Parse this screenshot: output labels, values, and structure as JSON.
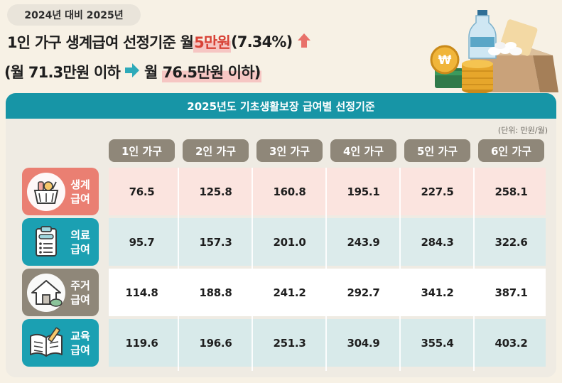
{
  "header": {
    "pill": "2024년 대비 2025년",
    "title_line1_prefix": "1인 가구 생계급여 선정기준 월 ",
    "title_line1_highlight": "5만원",
    "title_line1_suffix": "(7.34%)",
    "title_line2_prefix": "(월 71.3만원 이하",
    "title_line2_mid": "월 ",
    "title_line2_highlight": "76.5만원 이하)",
    "up_icon": "up-arrow-icon",
    "right_icon": "right-arrow-icon"
  },
  "table": {
    "title": "2025년도 기초생활보장 급여별 선정기준",
    "unit": "(단위: 만원/월)",
    "columns": [
      "1인 가구",
      "2인 가구",
      "3인 가구",
      "4인 가구",
      "5인 가구",
      "6인 가구"
    ],
    "rows": [
      {
        "label": "생계\n급여",
        "icon": "grocery-basket-icon",
        "values": [
          "76.5",
          "125.8",
          "160.8",
          "195.1",
          "227.5",
          "258.1"
        ]
      },
      {
        "label": "의료\n급여",
        "icon": "clipboard-icon",
        "values": [
          "95.7",
          "157.3",
          "201.0",
          "243.9",
          "284.3",
          "322.6"
        ]
      },
      {
        "label": "주거\n급여",
        "icon": "house-icon",
        "values": [
          "114.8",
          "188.8",
          "241.2",
          "292.7",
          "341.2",
          "387.1"
        ]
      },
      {
        "label": "교육\n급여",
        "icon": "book-icon",
        "values": [
          "119.6",
          "196.6",
          "251.3",
          "304.9",
          "355.4",
          "403.2"
        ]
      }
    ]
  },
  "colors": {
    "header_bar": "#1795a6",
    "column_header": "#8f8779",
    "row_accents": [
      "#ea7f72",
      "#1ba0b2",
      "#8f8779",
      "#1ba0b2"
    ],
    "row_fills": [
      "#fbe4df",
      "#dcebeb",
      "#ffffff",
      "#d8eaea"
    ],
    "highlight_red": "#d84236"
  },
  "illustration": {
    "icon": "groceries-and-coins-icon",
    "coin_symbol": "₩"
  }
}
